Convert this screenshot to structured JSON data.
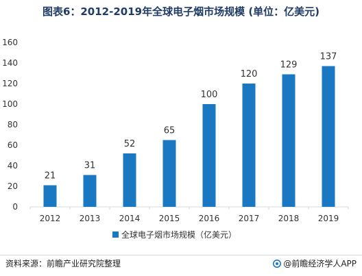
{
  "title": "图表6：2012-2019年全球电子烟市场规模 (单位：亿美元)",
  "footer": {
    "source": "资料来源：前瞻产业研究院整理",
    "brand": "@前瞻经济学人APP"
  },
  "colors": {
    "bar": "#1a78c2",
    "title": "#1f3b66",
    "axis": "#d9d9d9",
    "grid": "#e6e6e6"
  },
  "chart_data": {
    "type": "bar",
    "title": "图表6：2012-2019年全球电子烟市场规模 (单位：亿美元)",
    "categories": [
      "2012",
      "2013",
      "2014",
      "2015",
      "2016",
      "2017",
      "2018",
      "2019"
    ],
    "series": [
      {
        "name": "全球电子烟市场规模（亿美元）",
        "values": [
          21,
          31,
          52,
          65,
          100,
          120,
          129,
          137
        ]
      }
    ],
    "yticks": [
      0,
      20,
      40,
      60,
      80,
      100,
      120,
      140,
      160
    ],
    "ylim": [
      0,
      160
    ],
    "grid": false,
    "legend": "bottom-center",
    "data_labels": true
  }
}
